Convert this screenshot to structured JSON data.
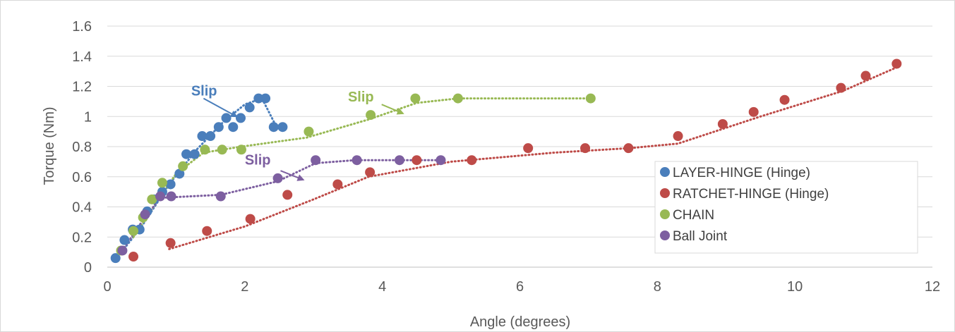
{
  "chart_data": {
    "type": "scatter",
    "title": "",
    "xlabel": "Angle (degrees)",
    "ylabel": "Torque (Nm)",
    "xlim": [
      0,
      12
    ],
    "ylim": [
      0,
      1.6
    ],
    "xticks": [
      0,
      2,
      4,
      6,
      8,
      10,
      12
    ],
    "xtick_labels": [
      "0",
      "2",
      "4",
      "6",
      "8",
      "10",
      "12"
    ],
    "yticks": [
      0,
      0.2,
      0.4,
      0.6,
      0.8,
      1.0,
      1.2,
      1.4,
      1.6
    ],
    "ytick_labels": [
      "0",
      "0.2",
      "0.4",
      "0.6",
      "0.8",
      "1",
      "1.2",
      "1.4",
      "1.6"
    ],
    "grid": "horizontal",
    "legend": "right",
    "series": [
      {
        "name": "LAYER-HINGE (Hinge)",
        "color": "#4a7ebb",
        "x": [
          0.12,
          0.25,
          0.37,
          0.47,
          0.58,
          0.68,
          0.8,
          0.92,
          1.05,
          1.15,
          1.27,
          1.38,
          1.5,
          1.62,
          1.73,
          1.83,
          1.94,
          2.07,
          2.2,
          2.3,
          2.42,
          2.55
        ],
        "y": [
          0.06,
          0.18,
          0.25,
          0.25,
          0.37,
          0.45,
          0.5,
          0.55,
          0.62,
          0.75,
          0.75,
          0.87,
          0.87,
          0.93,
          0.99,
          0.93,
          0.99,
          1.06,
          1.12,
          1.12,
          0.93,
          0.93
        ]
      },
      {
        "name": "RATCHET-HINGE (Hinge)",
        "color": "#be4b48",
        "x": [
          0.38,
          0.92,
          1.45,
          2.08,
          2.62,
          3.35,
          3.82,
          4.5,
          5.3,
          6.12,
          6.95,
          7.58,
          8.3,
          8.95,
          9.4,
          9.85,
          10.67,
          11.03,
          11.48
        ],
        "y": [
          0.07,
          0.16,
          0.24,
          0.32,
          0.48,
          0.55,
          0.63,
          0.71,
          0.71,
          0.79,
          0.79,
          0.79,
          0.87,
          0.95,
          1.03,
          1.11,
          1.19,
          1.27,
          1.35
        ]
      },
      {
        "name": "CHAIN",
        "color": "#98b954",
        "x": [
          0.2,
          0.38,
          0.52,
          0.65,
          0.8,
          1.1,
          1.42,
          1.67,
          1.95,
          2.93,
          3.83,
          4.48,
          5.1,
          7.03
        ],
        "y": [
          0.11,
          0.24,
          0.33,
          0.45,
          0.56,
          0.67,
          0.78,
          0.78,
          0.78,
          0.9,
          1.01,
          1.12,
          1.12,
          1.12
        ]
      },
      {
        "name": "Ball Joint",
        "color": "#7d5fa0",
        "x": [
          0.22,
          0.55,
          0.77,
          0.93,
          1.65,
          2.48,
          3.03,
          3.63,
          4.25,
          4.85
        ],
        "y": [
          0.11,
          0.35,
          0.47,
          0.47,
          0.47,
          0.59,
          0.71,
          0.71,
          0.71,
          0.71
        ]
      }
    ],
    "trendlines": [
      {
        "series": 0,
        "x": [
          0.12,
          0.5,
          0.9,
          1.3,
          1.7,
          2.0,
          2.25,
          2.45
        ],
        "y": [
          0.05,
          0.27,
          0.55,
          0.78,
          0.97,
          1.08,
          1.12,
          0.94
        ]
      },
      {
        "series": 1,
        "x": [
          0.9,
          2.0,
          3.0,
          3.8,
          5.0,
          6.5,
          7.6,
          8.3,
          9.5,
          10.7,
          11.5
        ],
        "y": [
          0.12,
          0.27,
          0.45,
          0.6,
          0.7,
          0.76,
          0.79,
          0.82,
          1.0,
          1.17,
          1.33
        ]
      },
      {
        "series": 2,
        "x": [
          0.38,
          0.7,
          1.0,
          1.4,
          1.95,
          2.9,
          3.8,
          4.5,
          5.1,
          7.03
        ],
        "y": [
          0.2,
          0.42,
          0.62,
          0.76,
          0.8,
          0.86,
          0.98,
          1.09,
          1.12,
          1.12
        ]
      },
      {
        "series": 3,
        "x": [
          0.22,
          0.5,
          0.77,
          1.65,
          2.48,
          3.03,
          3.6,
          4.25,
          4.85
        ],
        "y": [
          0.11,
          0.3,
          0.46,
          0.48,
          0.57,
          0.69,
          0.71,
          0.71,
          0.71
        ]
      }
    ],
    "annotations": [
      {
        "text": "Slip",
        "color": "#4a7ebb",
        "x": 1.22,
        "y": 1.14,
        "arrow_from": [
          1.4,
          1.12
        ],
        "arrow_to": [
          1.88,
          1.0
        ]
      },
      {
        "text": "Slip",
        "color": "#98b954",
        "x": 3.5,
        "y": 1.1,
        "arrow_from": [
          3.99,
          1.08
        ],
        "arrow_to": [
          4.3,
          1.02
        ]
      },
      {
        "text": "Slip",
        "color": "#7d5fa0",
        "x": 2.0,
        "y": 0.68,
        "arrow_from": [
          2.52,
          0.64
        ],
        "arrow_to": [
          2.85,
          0.58
        ]
      }
    ]
  }
}
